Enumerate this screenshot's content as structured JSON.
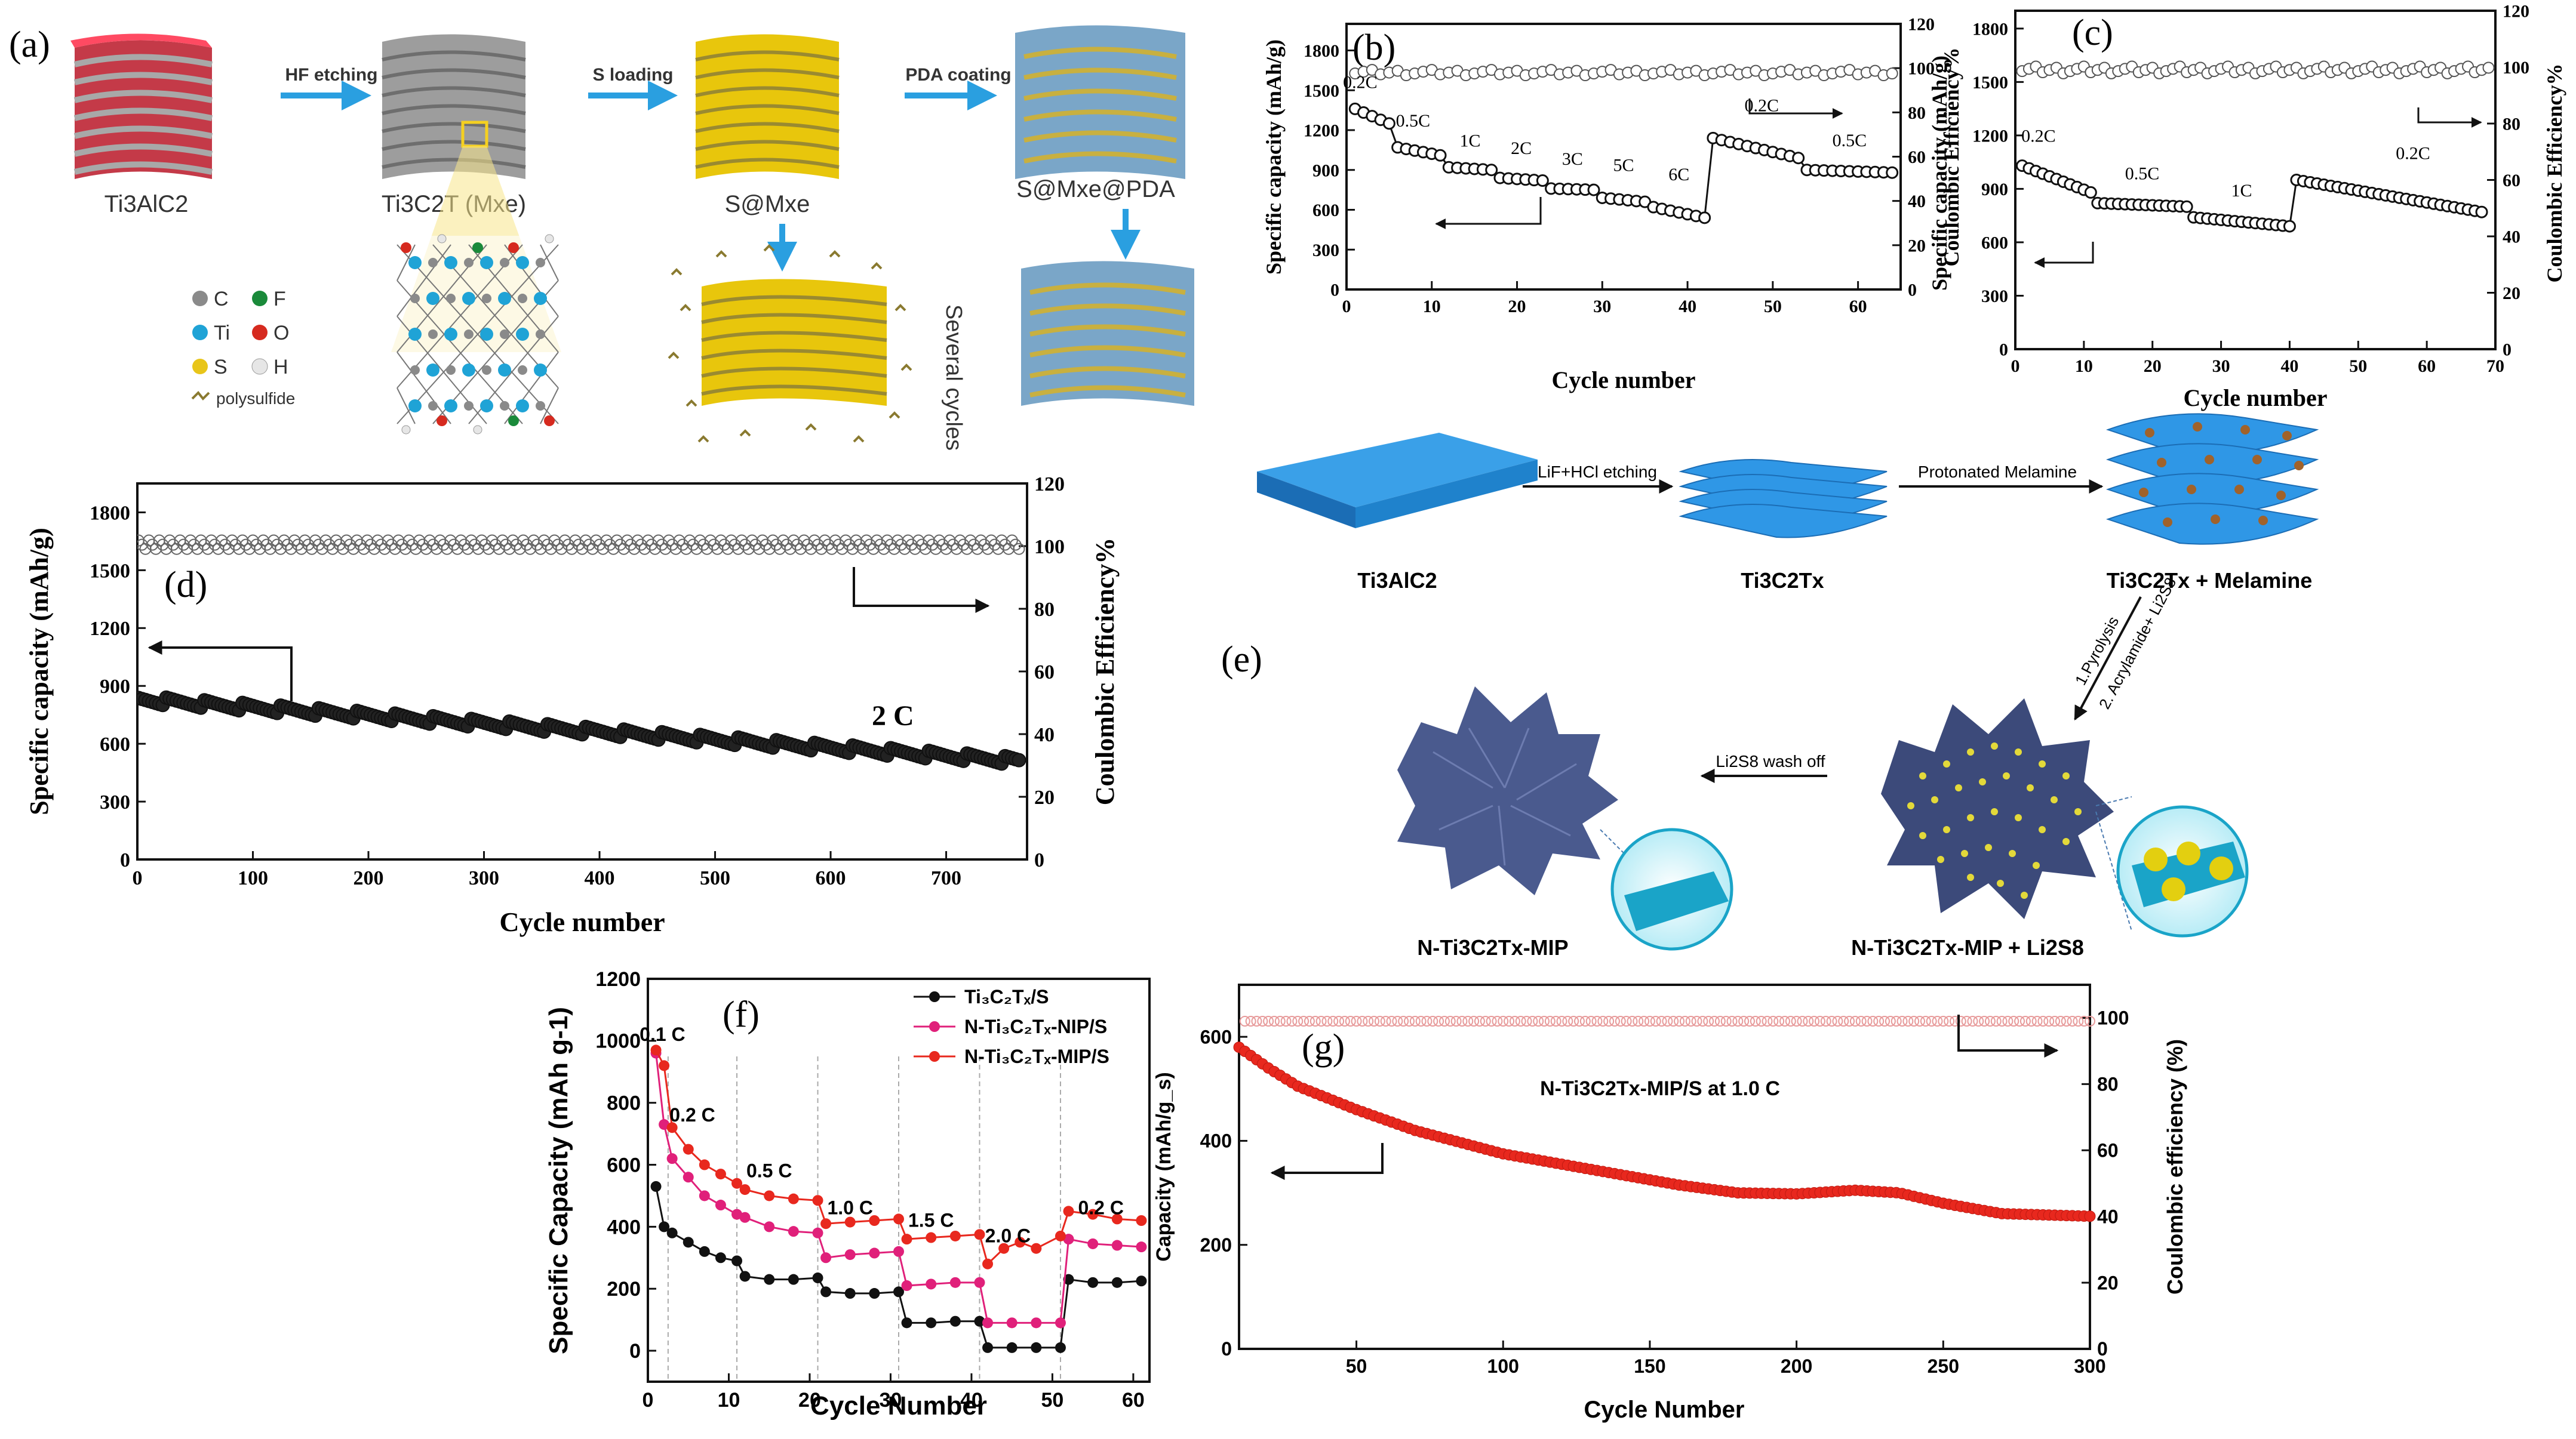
{
  "figure": {
    "panel_a": {
      "letter": "(a)",
      "materials": [
        "Ti3AlC2",
        "Ti3C2T (Mxe)",
        "S@Mxe",
        "S@Mxe@PDA"
      ],
      "steps": [
        "HF etching",
        "S loading",
        "PDA coating"
      ],
      "side_text": "Several cycles",
      "legend": [
        {
          "symbol": "C",
          "color": "#8a8a8a"
        },
        {
          "symbol": "F",
          "color": "#1a8a3a"
        },
        {
          "symbol": "Ti",
          "color": "#1fa3d6"
        },
        {
          "symbol": "O",
          "color": "#d62a1f"
        },
        {
          "symbol": "S",
          "color": "#e8c51a"
        },
        {
          "symbol": "H",
          "color": "#e6e6e6"
        }
      ],
      "polysulfide_label": "polysulfide"
    },
    "panel_e": {
      "letter": "(e)",
      "materials": [
        "Ti3AlC2",
        "Ti3C2Tx",
        "Ti3C2Tx + Melamine",
        "N-Ti3C2Tx-MIP + Li2S8",
        "N-Ti3C2Tx-MIP"
      ],
      "steps": [
        "LiF+HCl etching",
        "Protonated Melamine",
        "1.Pyrolysis",
        "2. Acrylamide+ Li2S8",
        "Li2S8 wash off"
      ]
    }
  },
  "chart_data": [
    {
      "id": "b",
      "type": "scatter",
      "letter": "(b)",
      "xlabel": "Cycle number",
      "ylabel": "Specific capacity (mAh/g)",
      "y2label": "Coulombic Efficiency%",
      "xlim": [
        0,
        65
      ],
      "ylim": [
        0,
        2000
      ],
      "y2lim": [
        0,
        120
      ],
      "xticks": [
        "0",
        "10",
        "20",
        "30",
        "40",
        "50",
        "60"
      ],
      "yticks": [
        "0",
        "300",
        "600",
        "900",
        "1200",
        "1500",
        "1800"
      ],
      "y2ticks": [
        "0",
        "20",
        "40",
        "60",
        "80",
        "100",
        "120"
      ],
      "rate_segments": [
        {
          "rate": "0.2C",
          "start": 1,
          "end": 5,
          "from": 1360,
          "to": 1250
        },
        {
          "rate": "0.5C",
          "start": 6,
          "end": 11,
          "from": 1070,
          "to": 1010
        },
        {
          "rate": "1C",
          "start": 12,
          "end": 17,
          "from": 920,
          "to": 900
        },
        {
          "rate": "2C",
          "start": 18,
          "end": 23,
          "from": 840,
          "to": 820
        },
        {
          "rate": "3C",
          "start": 24,
          "end": 29,
          "from": 760,
          "to": 750
        },
        {
          "rate": "5C",
          "start": 30,
          "end": 35,
          "from": 690,
          "to": 660
        },
        {
          "rate": "6C",
          "start": 36,
          "end": 42,
          "from": 620,
          "to": 540
        },
        {
          "rate": "0.2C",
          "start": 43,
          "end": 53,
          "from": 1140,
          "to": 990
        },
        {
          "rate": "0.5C",
          "start": 54,
          "end": 64,
          "from": 900,
          "to": 880
        }
      ],
      "ce_level": 98
    },
    {
      "id": "c",
      "type": "scatter",
      "letter": "(c)",
      "xlabel": "Cycle number",
      "ylabel": "Specific capacity (mAh/g)",
      "y2label": "Coulombic Efficiency%",
      "xlim": [
        0,
        70
      ],
      "ylim": [
        0,
        1900
      ],
      "y2lim": [
        0,
        120
      ],
      "xticks": [
        "0",
        "10",
        "20",
        "30",
        "40",
        "50",
        "60",
        "70"
      ],
      "yticks": [
        "0",
        "300",
        "600",
        "900",
        "1200",
        "1500",
        "1800"
      ],
      "y2ticks": [
        "0",
        "20",
        "40",
        "60",
        "80",
        "100",
        "120"
      ],
      "rate_segments": [
        {
          "rate": "0.2C",
          "start": 1,
          "end": 11,
          "from": 1030,
          "to": 880
        },
        {
          "rate": "0.5C",
          "start": 12,
          "end": 25,
          "from": 820,
          "to": 800
        },
        {
          "rate": "1C",
          "start": 26,
          "end": 40,
          "from": 740,
          "to": 690
        },
        {
          "rate": "0.2C",
          "start": 41,
          "end": 68,
          "from": 950,
          "to": 770
        }
      ],
      "ce_level": 99
    },
    {
      "id": "d",
      "type": "scatter",
      "letter": "(d)",
      "xlabel": "Cycle number",
      "ylabel": "Specific capacity (mAh/g)",
      "y2label": "Coulombic Efficiency%",
      "xlim": [
        0,
        770
      ],
      "ylim": [
        0,
        1950
      ],
      "y2lim": [
        0,
        120
      ],
      "xticks": [
        "0",
        "100",
        "200",
        "300",
        "400",
        "500",
        "600",
        "700"
      ],
      "yticks": [
        "0",
        "300",
        "600",
        "900",
        "1200",
        "1500",
        "1800"
      ],
      "y2ticks": [
        "0",
        "20",
        "40",
        "60",
        "80",
        "100",
        "120"
      ],
      "annotation": "2 C",
      "capacity": {
        "start": 830,
        "end": 510
      },
      "ce_level": 100
    },
    {
      "id": "f",
      "type": "line",
      "letter": "(f)",
      "xlabel": "Cycle Number",
      "ylabel": "Specific Capacity (mAh g-1)",
      "xlim": [
        0,
        62
      ],
      "ylim": [
        -100,
        1200
      ],
      "xticks": [
        "0",
        "10",
        "20",
        "30",
        "40",
        "50",
        "60"
      ],
      "yticks": [
        "0",
        "200",
        "400",
        "600",
        "800",
        "1000",
        "1200"
      ],
      "rates": [
        "0.1 C",
        "0.2 C",
        "0.5 C",
        "1.0 C",
        "1.5 C",
        "2.0 C",
        "0.2 C"
      ],
      "series": [
        {
          "name": "Ti3C2Tx/S",
          "sub": "Ti₃C₂Tₓ/S",
          "color": "#111111",
          "points": [
            [
              1,
              530
            ],
            [
              2,
              400
            ],
            [
              3,
              380
            ],
            [
              5,
              350
            ],
            [
              7,
              320
            ],
            [
              9,
              300
            ],
            [
              11,
              290
            ],
            [
              12,
              240
            ],
            [
              15,
              230
            ],
            [
              18,
              230
            ],
            [
              21,
              235
            ],
            [
              22,
              190
            ],
            [
              25,
              185
            ],
            [
              28,
              185
            ],
            [
              31,
              190
            ],
            [
              32,
              90
            ],
            [
              35,
              90
            ],
            [
              38,
              95
            ],
            [
              41,
              95
            ],
            [
              42,
              10
            ],
            [
              45,
              10
            ],
            [
              48,
              10
            ],
            [
              51,
              10
            ],
            [
              52,
              230
            ],
            [
              55,
              220
            ],
            [
              58,
              220
            ],
            [
              61,
              225
            ]
          ]
        },
        {
          "name": "N-Ti3C2Tx-NIP/S",
          "sub": "N-Ti₃C₂Tₓ-NIP/S",
          "color": "#e0207a",
          "points": [
            [
              1,
              960
            ],
            [
              2,
              730
            ],
            [
              3,
              620
            ],
            [
              5,
              560
            ],
            [
              7,
              500
            ],
            [
              9,
              470
            ],
            [
              11,
              440
            ],
            [
              12,
              430
            ],
            [
              15,
              400
            ],
            [
              18,
              385
            ],
            [
              21,
              380
            ],
            [
              22,
              300
            ],
            [
              25,
              310
            ],
            [
              28,
              315
            ],
            [
              31,
              320
            ],
            [
              32,
              210
            ],
            [
              35,
              215
            ],
            [
              38,
              220
            ],
            [
              41,
              220
            ],
            [
              42,
              90
            ],
            [
              45,
              90
            ],
            [
              48,
              90
            ],
            [
              51,
              90
            ],
            [
              52,
              360
            ],
            [
              55,
              345
            ],
            [
              58,
              340
            ],
            [
              61,
              335
            ]
          ]
        },
        {
          "name": "N-Ti3C2Tx-MIP/S",
          "sub": "N-Ti₃C₂Tₓ-MIP/S",
          "color": "#e8281e",
          "points": [
            [
              1,
              970
            ],
            [
              2,
              920
            ],
            [
              3,
              720
            ],
            [
              5,
              650
            ],
            [
              7,
              600
            ],
            [
              9,
              570
            ],
            [
              11,
              540
            ],
            [
              12,
              520
            ],
            [
              15,
              500
            ],
            [
              18,
              490
            ],
            [
              21,
              485
            ],
            [
              22,
              410
            ],
            [
              25,
              415
            ],
            [
              28,
              420
            ],
            [
              31,
              425
            ],
            [
              32,
              360
            ],
            [
              35,
              365
            ],
            [
              38,
              370
            ],
            [
              41,
              375
            ],
            [
              42,
              280
            ],
            [
              44,
              330
            ],
            [
              46,
              350
            ],
            [
              48,
              330
            ],
            [
              51,
              370
            ],
            [
              52,
              450
            ],
            [
              55,
              440
            ],
            [
              58,
              425
            ],
            [
              61,
              420
            ]
          ]
        }
      ]
    },
    {
      "id": "g",
      "type": "line",
      "letter": "(g)",
      "xlabel": "Cycle Number",
      "ylabel": "Capacity (mAh/g_s)",
      "y2label": "Coulombic efficiency (%)",
      "annotation": "N-Ti3C2Tx-MIP/S at 1.0 C",
      "xlim": [
        10,
        300
      ],
      "ylim": [
        0,
        700
      ],
      "y2lim": [
        0,
        110
      ],
      "xticks": [
        "50",
        "100",
        "150",
        "200",
        "250",
        "300"
      ],
      "yticks": [
        "0",
        "200",
        "400",
        "600"
      ],
      "y2ticks": [
        "0",
        "20",
        "40",
        "60",
        "80",
        "100"
      ],
      "capacity_points": [
        [
          10,
          580
        ],
        [
          20,
          540
        ],
        [
          30,
          505
        ],
        [
          50,
          460
        ],
        [
          70,
          420
        ],
        [
          100,
          375
        ],
        [
          130,
          345
        ],
        [
          160,
          315
        ],
        [
          180,
          300
        ],
        [
          200,
          298
        ],
        [
          220,
          305
        ],
        [
          235,
          300
        ],
        [
          250,
          280
        ],
        [
          270,
          260
        ],
        [
          300,
          255
        ]
      ],
      "ce_level": 99
    }
  ]
}
